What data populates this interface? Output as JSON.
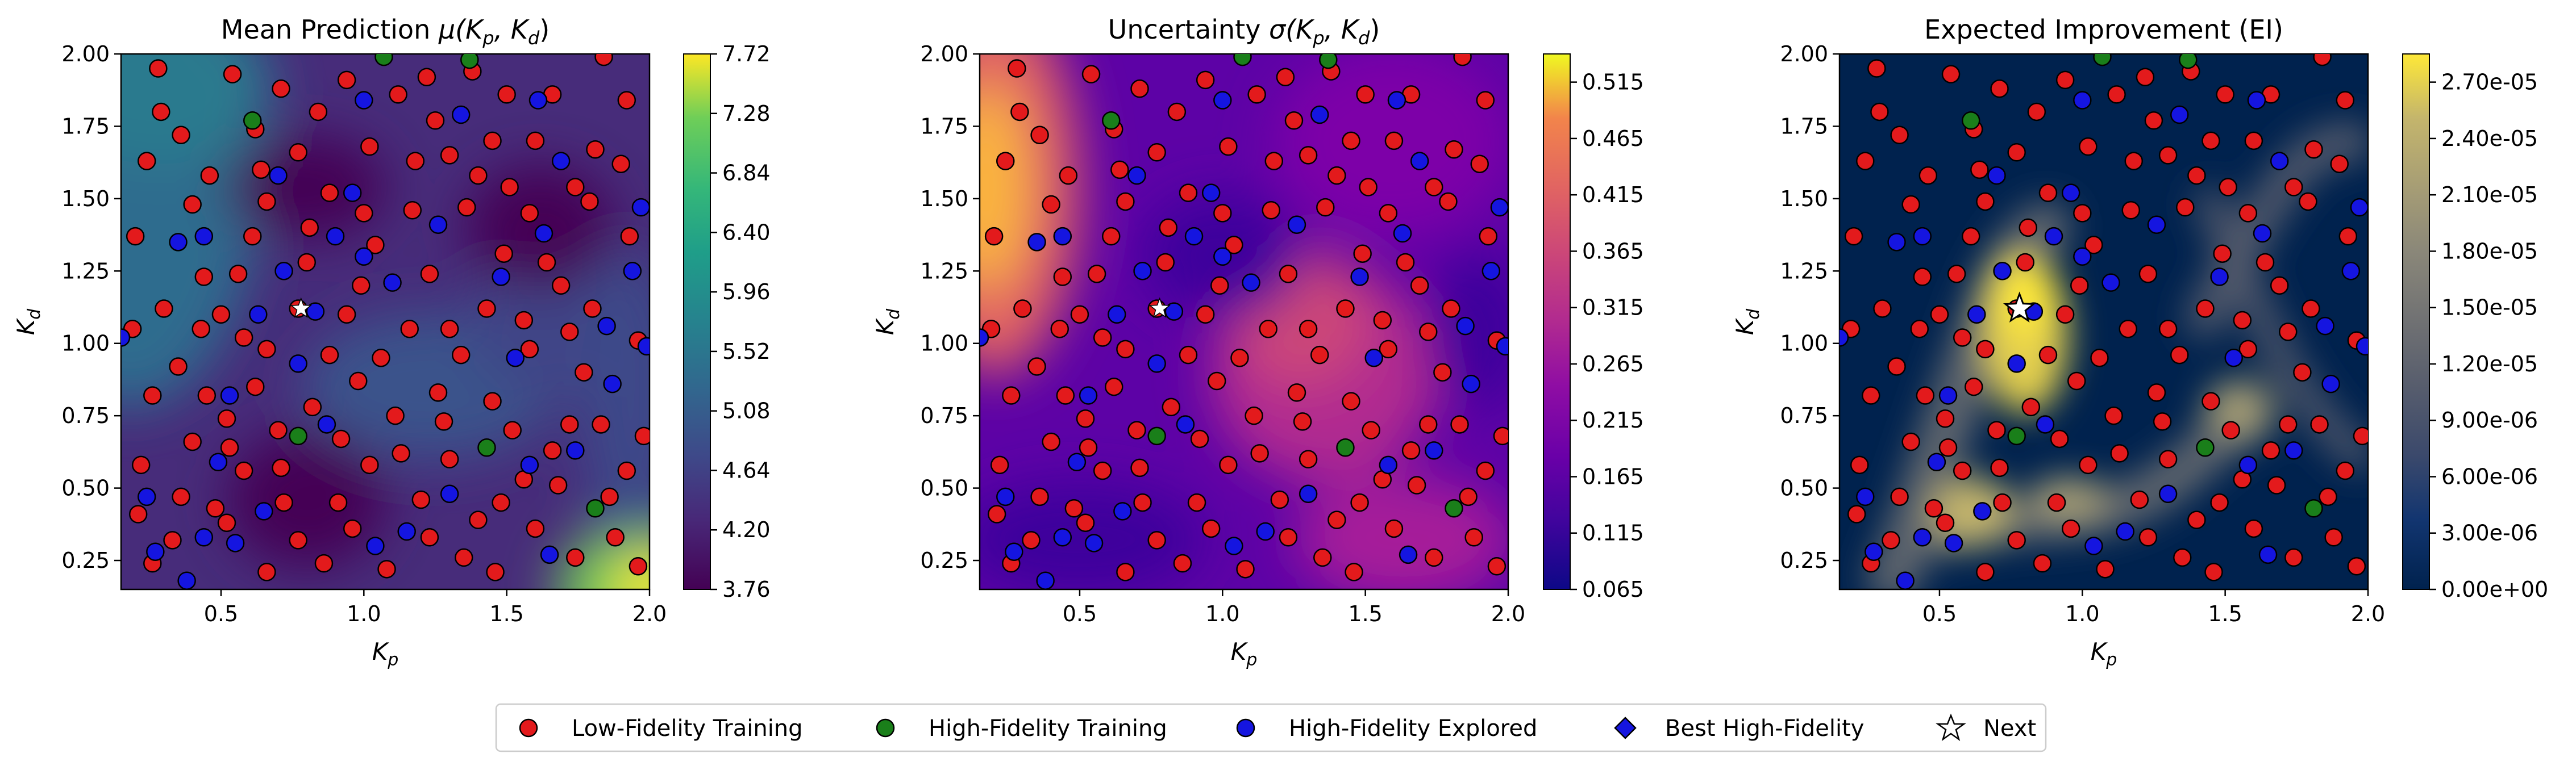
{
  "figure": {
    "legend": {
      "placement": "bottom-center",
      "entries": [
        {
          "label": "Low-Fidelity Training",
          "marker": "circle",
          "color": "#e31a1c"
        },
        {
          "label": "High-Fidelity Training",
          "marker": "circle",
          "color": "#1a7f1a"
        },
        {
          "label": "High-Fidelity Explored",
          "marker": "circle",
          "color": "#1515e0"
        },
        {
          "label": "Best High-Fidelity",
          "marker": "diamond",
          "color": "#1515e0"
        },
        {
          "label": "Next",
          "marker": "star",
          "color": "#ffffff"
        }
      ]
    }
  },
  "chart_data": [
    {
      "type": "heatmap",
      "title": "Mean Prediction μ(K_p, K_d)",
      "title_main": "Mean Prediction ",
      "title_sym": "μ",
      "title_args": "(K",
      "xlabel": "K",
      "xlabel_sub": "p",
      "ylabel": "K",
      "ylabel_sub": "d",
      "xlim": [
        0.15,
        2.0
      ],
      "ylim": [
        0.15,
        2.0
      ],
      "xticks": [
        "0.5",
        "1.0",
        "1.5",
        "2.0"
      ],
      "yticks": [
        "0.25",
        "0.50",
        "0.75",
        "1.00",
        "1.25",
        "1.50",
        "1.75",
        "2.00"
      ],
      "colormap": "viridis",
      "colorbar": {
        "min": 3.76,
        "max": 7.72,
        "ticks": [
          "3.76",
          "4.20",
          "4.64",
          "5.08",
          "5.52",
          "5.96",
          "6.40",
          "6.84",
          "7.28",
          "7.72"
        ]
      },
      "grid": false
    },
    {
      "type": "heatmap",
      "title": "Uncertainty σ(K_p, K_d)",
      "title_main": "Uncertainty ",
      "title_sym": "σ",
      "title_args": "(K",
      "xlabel": "K",
      "xlabel_sub": "p",
      "ylabel": "K",
      "ylabel_sub": "d",
      "xlim": [
        0.15,
        2.0
      ],
      "ylim": [
        0.15,
        2.0
      ],
      "xticks": [
        "0.5",
        "1.0",
        "1.5",
        "2.0"
      ],
      "yticks": [
        "0.25",
        "0.50",
        "0.75",
        "1.00",
        "1.25",
        "1.50",
        "1.75",
        "2.00"
      ],
      "colormap": "plasma",
      "colorbar": {
        "min": 0.065,
        "max": 0.54,
        "ticks": [
          "0.065",
          "0.115",
          "0.165",
          "0.215",
          "0.265",
          "0.315",
          "0.365",
          "0.415",
          "0.465",
          "0.515"
        ]
      },
      "grid": false
    },
    {
      "type": "heatmap",
      "title": "Expected Improvement (EI)",
      "title_main": "Expected Improvement (EI)",
      "xlabel": "K",
      "xlabel_sub": "p",
      "ylabel": "K",
      "ylabel_sub": "d",
      "xlim": [
        0.15,
        2.0
      ],
      "ylim": [
        0.15,
        2.0
      ],
      "xticks": [
        "0.5",
        "1.0",
        "1.5",
        "2.0"
      ],
      "yticks": [
        "0.25",
        "0.50",
        "0.75",
        "1.00",
        "1.25",
        "1.50",
        "1.75",
        "2.00"
      ],
      "colormap": "cividis",
      "colorbar": {
        "min": 0,
        "max": 2.85e-05,
        "ticks": [
          "0.00e+00",
          "3.00e-06",
          "6.00e-06",
          "9.00e-06",
          "1.20e-05",
          "1.50e-05",
          "1.80e-05",
          "2.10e-05",
          "2.40e-05",
          "2.70e-05"
        ]
      },
      "grid": false
    }
  ],
  "points": {
    "low_fidelity_training": [
      [
        0.77,
        1.12
      ],
      [
        0.62,
        0.85
      ],
      [
        0.29,
        1.8
      ],
      [
        0.44,
        1.23
      ],
      [
        0.99,
        1.2
      ],
      [
        0.2,
        1.37
      ],
      [
        0.58,
        1.02
      ],
      [
        0.8,
        1.28
      ],
      [
        1.02,
        1.68
      ],
      [
        1.25,
        1.77
      ],
      [
        1.49,
        1.31
      ],
      [
        1.69,
        1.2
      ],
      [
        1.34,
        0.96
      ],
      [
        1.11,
        0.75
      ],
      [
        0.91,
        0.45
      ],
      [
        0.53,
        0.64
      ],
      [
        0.33,
        0.32
      ],
      [
        0.77,
        0.32
      ],
      [
        1.23,
        0.33
      ],
      [
        1.56,
        0.53
      ],
      [
        1.83,
        0.72
      ],
      [
        1.93,
        1.37
      ],
      [
        1.4,
        1.58
      ],
      [
        0.66,
        1.49
      ],
      [
        0.35,
        0.92
      ],
      [
        0.88,
        0.96
      ],
      [
        1.16,
        1.05
      ],
      [
        1.45,
        0.8
      ],
      [
        1.68,
        0.51
      ],
      [
        1.88,
        0.33
      ],
      [
        0.22,
        0.58
      ],
      [
        0.48,
        0.43
      ],
      [
        0.7,
        0.7
      ],
      [
        1.02,
        0.58
      ],
      [
        1.3,
        0.6
      ],
      [
        1.6,
        0.36
      ],
      [
        1.77,
        0.9
      ],
      [
        1.92,
        0.56
      ],
      [
        1.79,
        1.49
      ],
      [
        1.6,
        1.7
      ],
      [
        1.38,
        1.94
      ],
      [
        0.94,
        1.91
      ],
      [
        0.54,
        1.93
      ],
      [
        0.24,
        1.63
      ],
      [
        0.4,
        1.48
      ],
      [
        0.77,
        1.66
      ],
      [
        1.17,
        1.46
      ],
      [
        1.51,
        1.54
      ],
      [
        1.72,
        1.04
      ],
      [
        1.58,
        0.98
      ],
      [
        1.26,
        0.83
      ],
      [
        0.98,
        0.87
      ],
      [
        0.71,
        0.57
      ],
      [
        0.45,
        0.82
      ],
      [
        0.3,
        1.12
      ],
      [
        0.56,
        1.24
      ],
      [
        0.88,
        1.52
      ],
      [
        1.12,
        1.86
      ],
      [
        1.5,
        1.86
      ],
      [
        1.81,
        1.67
      ],
      [
        1.96,
        1.01
      ],
      [
        1.86,
        0.47
      ],
      [
        1.46,
        0.21
      ],
      [
        1.08,
        0.22
      ],
      [
        0.66,
        0.21
      ],
      [
        0.26,
        0.24
      ],
      [
        0.4,
        0.66
      ],
      [
        0.82,
        0.78
      ],
      [
        1.2,
        0.46
      ],
      [
        1.4,
        0.39
      ],
      [
        1.66,
        0.63
      ],
      [
        1.43,
        1.12
      ],
      [
        1.04,
        1.34
      ],
      [
        0.61,
        1.37
      ],
      [
        0.36,
        1.72
      ],
      [
        0.71,
        1.88
      ],
      [
        1.3,
        1.65
      ],
      [
        1.66,
        1.86
      ],
      [
        1.92,
        1.84
      ],
      [
        0.52,
        0.38
      ],
      [
        0.86,
        0.24
      ],
      [
        1.35,
        0.26
      ],
      [
        1.74,
        0.26
      ],
      [
        1.98,
        0.68
      ],
      [
        1.64,
        1.28
      ],
      [
        1.23,
        1.24
      ],
      [
        0.94,
        1.1
      ],
      [
        0.66,
        0.98
      ],
      [
        0.43,
        1.05
      ],
      [
        0.26,
        0.82
      ],
      [
        0.58,
        0.56
      ],
      [
        1.06,
        0.95
      ],
      [
        1.52,
        0.7
      ],
      [
        1.8,
        1.12
      ],
      [
        0.81,
        1.4
      ],
      [
        1.0,
        1.45
      ],
      [
        1.36,
        1.47
      ],
      [
        1.74,
        1.54
      ],
      [
        0.46,
        1.58
      ],
      [
        0.28,
        1.95
      ],
      [
        0.62,
        1.74
      ],
      [
        1.22,
        1.92
      ],
      [
        1.58,
        1.45
      ],
      [
        1.9,
        1.62
      ],
      [
        0.19,
        1.05
      ],
      [
        0.36,
        0.47
      ],
      [
        0.72,
        0.45
      ],
      [
        1.13,
        0.62
      ],
      [
        1.48,
        0.45
      ],
      [
        1.72,
        0.72
      ],
      [
        1.3,
        1.05
      ],
      [
        0.52,
        0.74
      ],
      [
        0.92,
        0.67
      ],
      [
        1.18,
        1.63
      ],
      [
        0.84,
        1.8
      ],
      [
        1.56,
        1.08
      ],
      [
        1.45,
        1.7
      ],
      [
        0.21,
        0.41
      ],
      [
        0.96,
        0.36
      ],
      [
        1.28,
        0.73
      ],
      [
        1.84,
        1.99
      ],
      [
        1.96,
        0.23
      ],
      [
        0.64,
        1.6
      ],
      [
        0.5,
        1.1
      ]
    ],
    "high_fidelity_training": [
      [
        1.07,
        1.99
      ],
      [
        0.61,
        1.77
      ],
      [
        0.77,
        0.68
      ],
      [
        1.43,
        0.64
      ],
      [
        1.81,
        0.43
      ],
      [
        1.37,
        1.98
      ]
    ],
    "high_fidelity_explored": [
      [
        0.83,
        1.11
      ],
      [
        0.72,
        1.25
      ],
      [
        0.53,
        0.82
      ],
      [
        0.44,
        0.33
      ],
      [
        1.0,
        1.84
      ],
      [
        1.34,
        1.79
      ],
      [
        1.63,
        1.38
      ],
      [
        1.87,
        0.86
      ],
      [
        1.58,
        0.58
      ],
      [
        1.15,
        0.35
      ],
      [
        0.65,
        0.42
      ],
      [
        0.27,
        0.28
      ],
      [
        0.15,
        1.02
      ],
      [
        0.44,
        1.37
      ],
      [
        0.96,
        1.52
      ],
      [
        1.61,
        1.84
      ],
      [
        1.94,
        1.25
      ],
      [
        1.74,
        0.63
      ],
      [
        1.3,
        0.48
      ],
      [
        0.87,
        0.72
      ],
      [
        0.55,
        0.31
      ],
      [
        0.38,
        0.18
      ],
      [
        1.1,
        1.21
      ],
      [
        1.48,
        1.23
      ],
      [
        1.69,
        1.63
      ],
      [
        1.97,
        1.47
      ],
      [
        0.9,
        1.37
      ],
      [
        0.24,
        0.47
      ],
      [
        0.63,
        1.1
      ],
      [
        1.04,
        0.3
      ],
      [
        1.53,
        0.95
      ],
      [
        1.85,
        1.06
      ],
      [
        0.77,
        0.93
      ],
      [
        0.35,
        1.35
      ],
      [
        1.26,
        1.41
      ],
      [
        0.7,
        1.58
      ],
      [
        1.65,
        0.27
      ],
      [
        1.99,
        0.99
      ],
      [
        0.49,
        0.59
      ],
      [
        1.0,
        1.3
      ]
    ],
    "best_high_fidelity": [],
    "next": [
      0.78,
      1.12
    ]
  }
}
